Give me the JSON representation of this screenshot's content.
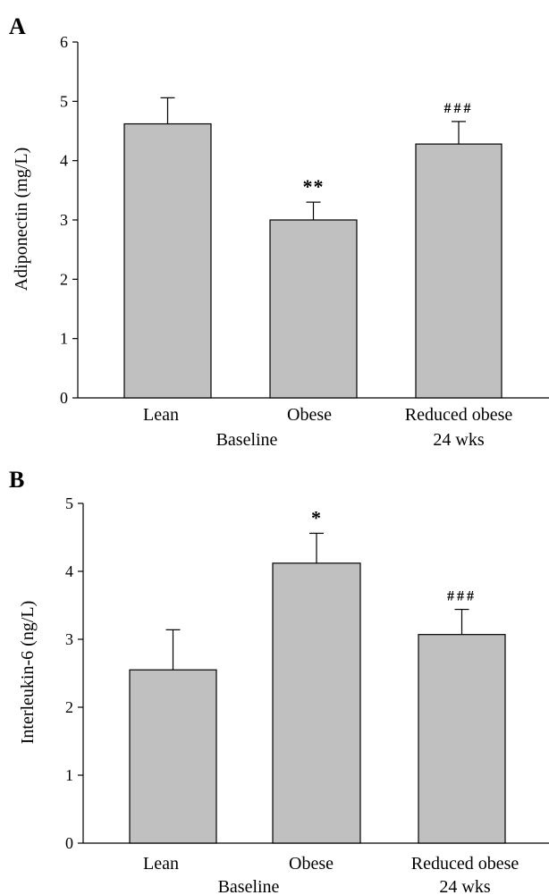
{
  "colors": {
    "bar_fill": "#c0c0c0",
    "bar_stroke": "#000000",
    "axis": "#000000"
  },
  "chart_data": [
    {
      "type": "bar",
      "panel_label": "A",
      "ylabel": "Adiponectin (mg/L)",
      "ylim": [
        0,
        6
      ],
      "yticks": [
        "0",
        "1",
        "2",
        "3",
        "4",
        "5",
        "6"
      ],
      "categories": [
        "Lean",
        "Obese",
        "Reduced obese"
      ],
      "category_sublabels": [
        "",
        "Baseline",
        "24 wks"
      ],
      "values": [
        4.62,
        3.0,
        4.28
      ],
      "errors": [
        0.44,
        0.3,
        0.38
      ],
      "annotations": [
        "",
        "**",
        "###"
      ]
    },
    {
      "type": "bar",
      "panel_label": "B",
      "ylabel": "Interleukin-6 (ng/L)",
      "ylim": [
        0,
        5
      ],
      "yticks": [
        "0",
        "1",
        "2",
        "3",
        "4",
        "5"
      ],
      "categories": [
        "Lean",
        "Obese",
        "Reduced obese"
      ],
      "category_sublabels": [
        "",
        "Baseline",
        "24 wks"
      ],
      "values": [
        2.55,
        4.12,
        3.07
      ],
      "errors": [
        0.59,
        0.44,
        0.37
      ],
      "annotations": [
        "",
        "*",
        "###"
      ]
    }
  ]
}
